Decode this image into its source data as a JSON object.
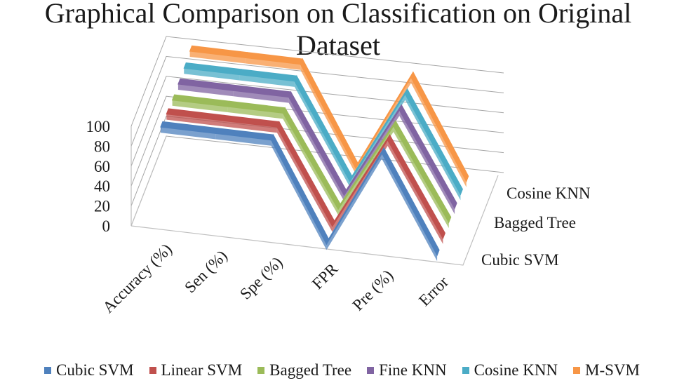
{
  "chart_data": {
    "type": "line",
    "subtype": "3d-ribbon",
    "title_lines": [
      "Graphical Comparison on Classification on Original",
      "Dataset"
    ],
    "categories": [
      "Accuracy (%)",
      "Sen (%)",
      "Spe (%)",
      "FPR",
      "Pre (%)",
      "Error"
    ],
    "y_ticks": [
      "0",
      "20",
      "40",
      "60",
      "80",
      "100"
    ],
    "ylim": [
      0,
      100
    ],
    "depth_labels": [
      "Cubic SVM",
      "Bagged Tree",
      "Cosine KNN"
    ],
    "legend_position": "bottom",
    "series": [
      {
        "name": "Cubic SVM",
        "color": "#4f81bd",
        "values": [
          98,
          98,
          98,
          0,
          98,
          2
        ]
      },
      {
        "name": "Linear SVM",
        "color": "#c0504d",
        "values": [
          96,
          96,
          96,
          3,
          96,
          4
        ]
      },
      {
        "name": "Bagged Tree",
        "color": "#9bbb59",
        "values": [
          95,
          95,
          95,
          5,
          95,
          5
        ]
      },
      {
        "name": "Fine KNN",
        "color": "#8064a2",
        "values": [
          96,
          96,
          96,
          4,
          96,
          4
        ]
      },
      {
        "name": "Cosine KNN",
        "color": "#4bacc6",
        "values": [
          97,
          97,
          97,
          3,
          97,
          3
        ]
      },
      {
        "name": "M-SVM",
        "color": "#f79646",
        "values": [
          99,
          99,
          99,
          1,
          99,
          1
        ]
      }
    ]
  }
}
